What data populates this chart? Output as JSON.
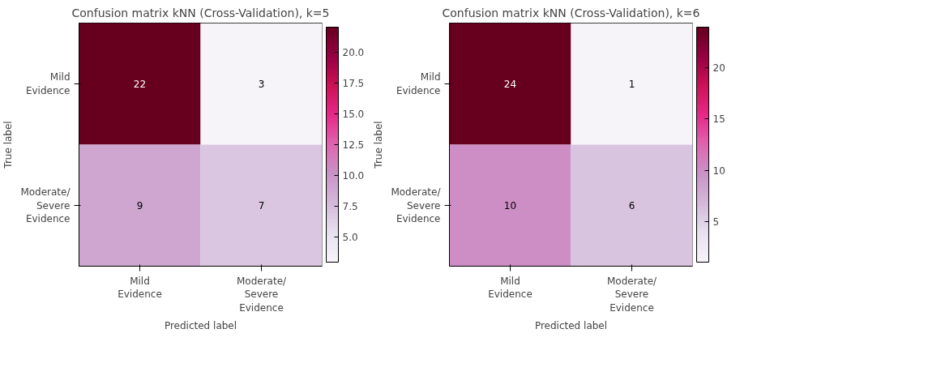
{
  "chart_data": [
    {
      "type": "heatmap",
      "title": "Confusion matrix kNN (Cross-Validation), k=5",
      "xlabel": "Predicted label",
      "ylabel": "True label",
      "categories": [
        "Mild\nEvidence",
        "Moderate/\nSevere\nEvidence"
      ],
      "y_categories": [
        "Mild\nEvidence",
        "Moderate/\nSevere\nEvidence"
      ],
      "cells": [
        [
          22,
          3
        ],
        [
          9,
          7
        ]
      ],
      "data_labels": true,
      "clim": [
        3,
        22
      ],
      "cticks": [
        {
          "value": 5,
          "label": "5.0"
        },
        {
          "value": 7.5,
          "label": "7.5"
        },
        {
          "value": 10,
          "label": "10.0"
        },
        {
          "value": 12.5,
          "label": "12.5"
        },
        {
          "value": 15,
          "label": "15.0"
        },
        {
          "value": 17.5,
          "label": "17.5"
        },
        {
          "value": 20,
          "label": "20.0"
        }
      ]
    },
    {
      "type": "heatmap",
      "title": "Confusion matrix kNN (Cross-Validation), k=6",
      "xlabel": "Predicted label",
      "ylabel": "True label",
      "categories": [
        "Mild\nEvidence",
        "Moderate/\nSevere\nEvidence"
      ],
      "y_categories": [
        "Mild\nEvidence",
        "Moderate/\nSevere\nEvidence"
      ],
      "cells": [
        [
          24,
          1
        ],
        [
          10,
          6
        ]
      ],
      "data_labels": true,
      "clim": [
        1,
        24
      ],
      "cticks": [
        5,
        10,
        15,
        20
      ]
    }
  ]
}
